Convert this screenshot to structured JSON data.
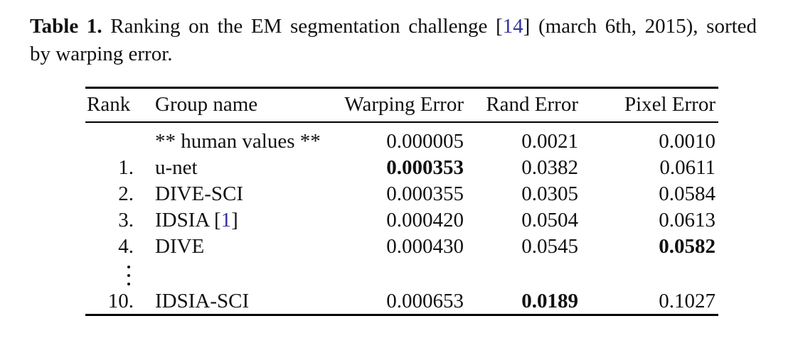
{
  "caption": {
    "label": "Table 1.",
    "line1_text": "Ranking on the EM segmentation challenge",
    "ref_open": "[",
    "ref_number": "14",
    "ref_close": "]",
    "line1_end": "(march 6th, 2015), sorted",
    "line2": "by warping error."
  },
  "colors": {
    "link_blue": "#32329e",
    "text": "#111111",
    "rule": "#000000"
  },
  "table": {
    "headers": {
      "rank": "Rank",
      "group": "Group name",
      "warping": "Warping Error",
      "rand": "Rand Error",
      "pixel": "Pixel Error"
    },
    "rows": [
      {
        "rank": "",
        "group": "** human values **",
        "warping": "0.000005",
        "rand": "0.0021",
        "pixel": "0.0010"
      },
      {
        "rank": "1.",
        "group": "u-net",
        "warping": "0.000353",
        "rand": "0.0382",
        "pixel": "0.0611"
      },
      {
        "rank": "2.",
        "group": "DIVE-SCI",
        "warping": "0.000355",
        "rand": "0.0305",
        "pixel": "0.0584"
      },
      {
        "rank": "3.",
        "group": "IDSIA",
        "group_ref_open": "[",
        "group_ref": "1",
        "group_ref_close": "]",
        "warping": "0.000420",
        "rand": "0.0504",
        "pixel": "0.0613"
      },
      {
        "rank": "4.",
        "group": "DIVE",
        "warping": "0.000430",
        "rand": "0.0545",
        "pixel": "0.0582"
      },
      {
        "rank": "10.",
        "group": "IDSIA-SCI",
        "warping": "0.000653",
        "rand": "0.0189",
        "pixel": "0.1027"
      }
    ]
  }
}
